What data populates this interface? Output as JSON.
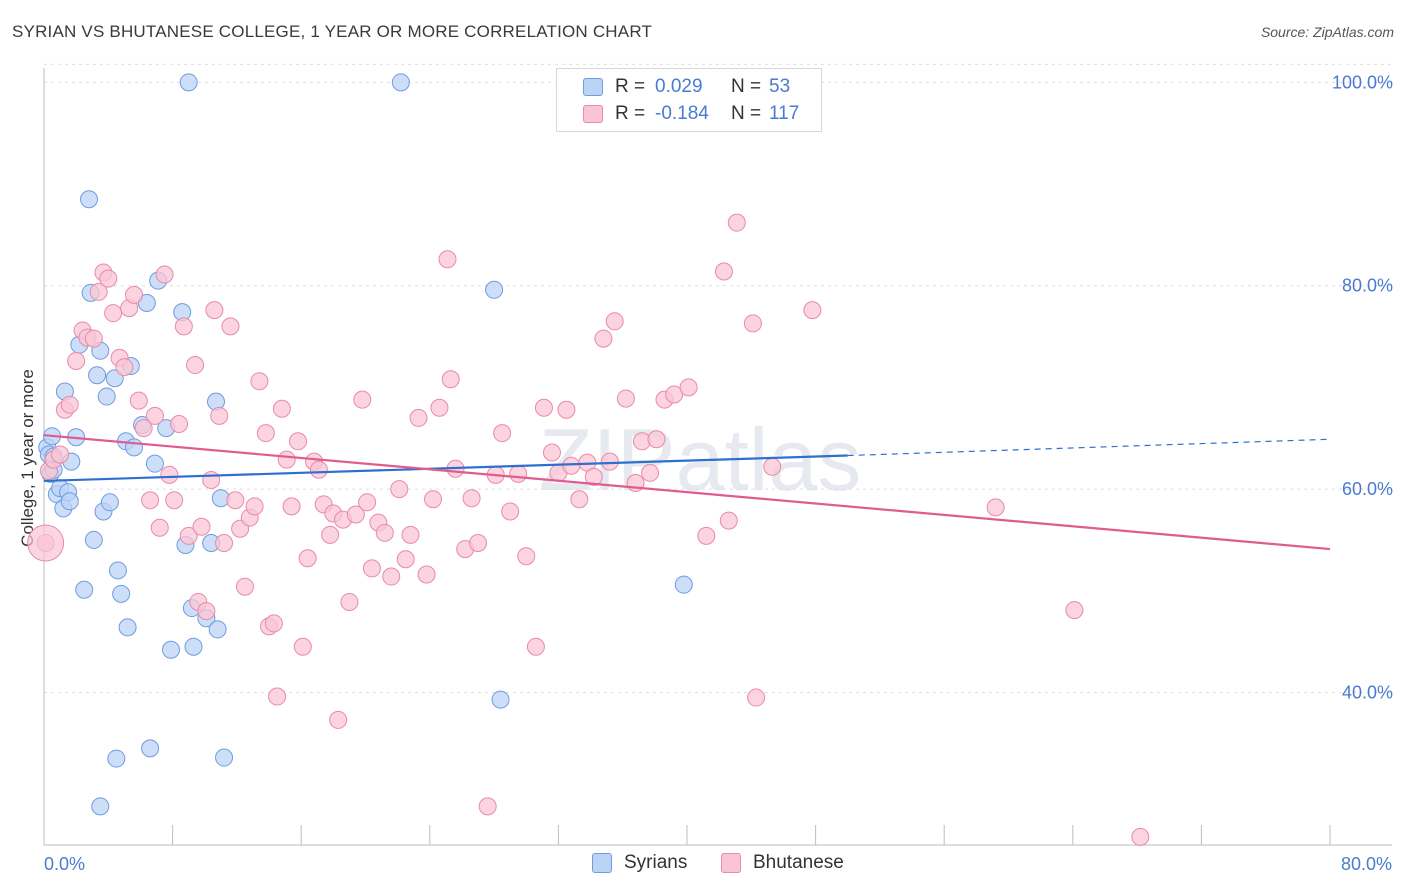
{
  "title": "SYRIAN VS BHUTANESE COLLEGE, 1 YEAR OR MORE CORRELATION CHART",
  "source": "Source: ZipAtlas.com",
  "stats": [
    {
      "r_label": "R =",
      "r_value": "0.029",
      "n_label": "N =",
      "n_value": "53",
      "fill": "#bcd3f5",
      "stroke": "#6f9ce0"
    },
    {
      "r_label": "R =",
      "r_value": "-0.184",
      "n_label": "N =",
      "n_value": "117",
      "fill": "#f9c5d6",
      "stroke": "#e88aaa"
    }
  ],
  "legend": [
    {
      "label": "Syrians",
      "fill": "#bcd3f5",
      "stroke": "#6f9ce0"
    },
    {
      "label": "Bhutanese",
      "fill": "#f9c5d6",
      "stroke": "#e88aaa"
    }
  ],
  "watermark": "ZIPatlas",
  "chart_data": {
    "type": "scatter",
    "title": "SYRIAN VS BHUTANESE COLLEGE, 1 YEAR OR MORE CORRELATION CHART",
    "xlabel": "",
    "ylabel": "College, 1 year or more",
    "xlim": [
      0,
      80
    ],
    "ylim": [
      25,
      102
    ],
    "x_ticks": [
      {
        "value": 0,
        "label": "0.0%"
      },
      {
        "value": 80,
        "label": "80.0%"
      }
    ],
    "y_ticks": [
      {
        "value": 40,
        "label": "40.0%"
      },
      {
        "value": 60,
        "label": "60.0%"
      },
      {
        "value": 80,
        "label": "80.0%"
      },
      {
        "value": 100,
        "label": "100.0%"
      }
    ],
    "grid": true,
    "series": [
      {
        "name": "Syrians",
        "color": "#6f9ce0",
        "fill": "#bcd3f5",
        "trend": {
          "x0": 0,
          "y0": 60.8,
          "x1": 50,
          "y1": 63.3,
          "dashed_to_x": 80,
          "dashed_to_y": 64.9,
          "color": "#2e6fd0"
        },
        "points": [
          [
            0.2,
            64.1
          ],
          [
            0.3,
            63.4
          ],
          [
            0.4,
            61.5
          ],
          [
            0.5,
            65.2
          ],
          [
            0.6,
            63.2
          ],
          [
            0.6,
            61.9
          ],
          [
            0.8,
            59.5
          ],
          [
            1.0,
            60.1
          ],
          [
            1.2,
            58.1
          ],
          [
            1.3,
            69.6
          ],
          [
            1.5,
            59.7
          ],
          [
            1.6,
            58.8
          ],
          [
            1.7,
            62.7
          ],
          [
            2.0,
            65.1
          ],
          [
            2.2,
            74.2
          ],
          [
            2.5,
            50.1
          ],
          [
            2.8,
            88.5
          ],
          [
            2.9,
            79.3
          ],
          [
            3.1,
            55.0
          ],
          [
            3.3,
            71.2
          ],
          [
            3.5,
            73.6
          ],
          [
            3.7,
            57.8
          ],
          [
            3.9,
            69.1
          ],
          [
            4.1,
            58.7
          ],
          [
            4.4,
            70.9
          ],
          [
            4.6,
            52.0
          ],
          [
            4.8,
            49.7
          ],
          [
            5.1,
            64.7
          ],
          [
            5.2,
            46.4
          ],
          [
            5.4,
            72.1
          ],
          [
            5.6,
            64.1
          ],
          [
            6.1,
            66.3
          ],
          [
            6.4,
            78.3
          ],
          [
            6.6,
            34.5
          ],
          [
            6.9,
            62.5
          ],
          [
            7.1,
            80.5
          ],
          [
            7.6,
            66.0
          ],
          [
            7.9,
            44.2
          ],
          [
            8.6,
            77.4
          ],
          [
            8.8,
            54.5
          ],
          [
            9.0,
            100.0
          ],
          [
            9.2,
            48.3
          ],
          [
            9.3,
            44.5
          ],
          [
            10.1,
            47.3
          ],
          [
            10.4,
            54.7
          ],
          [
            10.7,
            68.6
          ],
          [
            10.8,
            46.2
          ],
          [
            11.0,
            59.1
          ],
          [
            11.2,
            33.6
          ],
          [
            22.2,
            100.0
          ],
          [
            28.0,
            79.6
          ],
          [
            28.4,
            39.3
          ],
          [
            39.8,
            50.6
          ],
          [
            3.5,
            28.8
          ],
          [
            4.5,
            33.5
          ]
        ]
      },
      {
        "name": "Bhutanese",
        "color": "#e88aaa",
        "fill": "#f9c5d6",
        "trend": {
          "x0": 0,
          "y0": 65.3,
          "x1": 80,
          "y1": 54.1,
          "color": "#e05c8e"
        },
        "points": [
          [
            0.1,
            54.7
          ],
          [
            0.3,
            61.8
          ],
          [
            0.6,
            62.9
          ],
          [
            1.0,
            63.4
          ],
          [
            1.3,
            67.8
          ],
          [
            1.6,
            68.3
          ],
          [
            2.0,
            72.6
          ],
          [
            2.4,
            75.6
          ],
          [
            2.7,
            74.9
          ],
          [
            3.1,
            74.8
          ],
          [
            3.4,
            79.4
          ],
          [
            3.7,
            81.3
          ],
          [
            4.0,
            80.7
          ],
          [
            4.3,
            77.3
          ],
          [
            4.7,
            72.9
          ],
          [
            5.0,
            72.0
          ],
          [
            5.3,
            77.8
          ],
          [
            5.6,
            79.1
          ],
          [
            5.9,
            68.7
          ],
          [
            6.2,
            66.0
          ],
          [
            6.6,
            58.9
          ],
          [
            6.9,
            67.2
          ],
          [
            7.2,
            56.2
          ],
          [
            7.5,
            81.1
          ],
          [
            7.8,
            61.4
          ],
          [
            8.1,
            58.9
          ],
          [
            8.4,
            66.4
          ],
          [
            8.7,
            76.0
          ],
          [
            9.0,
            55.4
          ],
          [
            9.4,
            72.2
          ],
          [
            9.6,
            48.9
          ],
          [
            9.8,
            56.3
          ],
          [
            10.1,
            48.0
          ],
          [
            10.4,
            60.9
          ],
          [
            10.6,
            77.6
          ],
          [
            10.9,
            67.2
          ],
          [
            11.2,
            54.7
          ],
          [
            11.6,
            76.0
          ],
          [
            11.9,
            58.9
          ],
          [
            12.2,
            56.1
          ],
          [
            12.5,
            50.4
          ],
          [
            12.8,
            57.2
          ],
          [
            13.1,
            58.3
          ],
          [
            13.4,
            70.6
          ],
          [
            13.8,
            65.5
          ],
          [
            14.0,
            46.5
          ],
          [
            14.3,
            46.8
          ],
          [
            14.5,
            39.6
          ],
          [
            14.8,
            67.9
          ],
          [
            15.1,
            62.9
          ],
          [
            15.4,
            58.3
          ],
          [
            15.8,
            64.7
          ],
          [
            16.1,
            44.5
          ],
          [
            16.4,
            53.2
          ],
          [
            16.8,
            62.7
          ],
          [
            17.1,
            61.9
          ],
          [
            17.4,
            58.5
          ],
          [
            17.8,
            55.5
          ],
          [
            18.0,
            57.6
          ],
          [
            18.3,
            37.3
          ],
          [
            18.6,
            57.0
          ],
          [
            19.0,
            48.9
          ],
          [
            19.4,
            57.5
          ],
          [
            19.8,
            68.8
          ],
          [
            20.1,
            58.7
          ],
          [
            20.4,
            52.2
          ],
          [
            20.8,
            56.7
          ],
          [
            21.2,
            55.7
          ],
          [
            21.6,
            51.4
          ],
          [
            22.1,
            60.0
          ],
          [
            22.5,
            53.1
          ],
          [
            22.8,
            55.5
          ],
          [
            23.3,
            67.0
          ],
          [
            23.8,
            51.6
          ],
          [
            24.2,
            59.0
          ],
          [
            24.6,
            68.0
          ],
          [
            25.1,
            82.6
          ],
          [
            25.3,
            70.8
          ],
          [
            25.6,
            62.0
          ],
          [
            26.2,
            54.1
          ],
          [
            26.6,
            59.1
          ],
          [
            27.0,
            54.7
          ],
          [
            27.6,
            28.8
          ],
          [
            28.1,
            61.4
          ],
          [
            28.5,
            65.5
          ],
          [
            29.0,
            57.8
          ],
          [
            29.5,
            61.5
          ],
          [
            30.0,
            53.4
          ],
          [
            30.6,
            44.5
          ],
          [
            31.1,
            68.0
          ],
          [
            31.6,
            63.6
          ],
          [
            32.0,
            61.6
          ],
          [
            32.5,
            67.8
          ],
          [
            32.8,
            62.3
          ],
          [
            33.3,
            59.0
          ],
          [
            33.8,
            62.6
          ],
          [
            34.2,
            61.2
          ],
          [
            34.8,
            74.8
          ],
          [
            35.2,
            62.7
          ],
          [
            35.5,
            76.5
          ],
          [
            36.2,
            68.9
          ],
          [
            36.8,
            60.6
          ],
          [
            37.2,
            64.7
          ],
          [
            37.7,
            61.6
          ],
          [
            38.1,
            64.9
          ],
          [
            38.6,
            68.8
          ],
          [
            39.2,
            69.3
          ],
          [
            40.1,
            70.0
          ],
          [
            41.2,
            55.4
          ],
          [
            42.3,
            81.4
          ],
          [
            42.6,
            56.9
          ],
          [
            43.1,
            86.2
          ],
          [
            44.1,
            76.3
          ],
          [
            44.3,
            39.5
          ],
          [
            45.3,
            62.2
          ],
          [
            47.8,
            77.6
          ],
          [
            59.2,
            58.2
          ],
          [
            64.1,
            48.1
          ],
          [
            68.2,
            25.8
          ]
        ]
      }
    ]
  }
}
